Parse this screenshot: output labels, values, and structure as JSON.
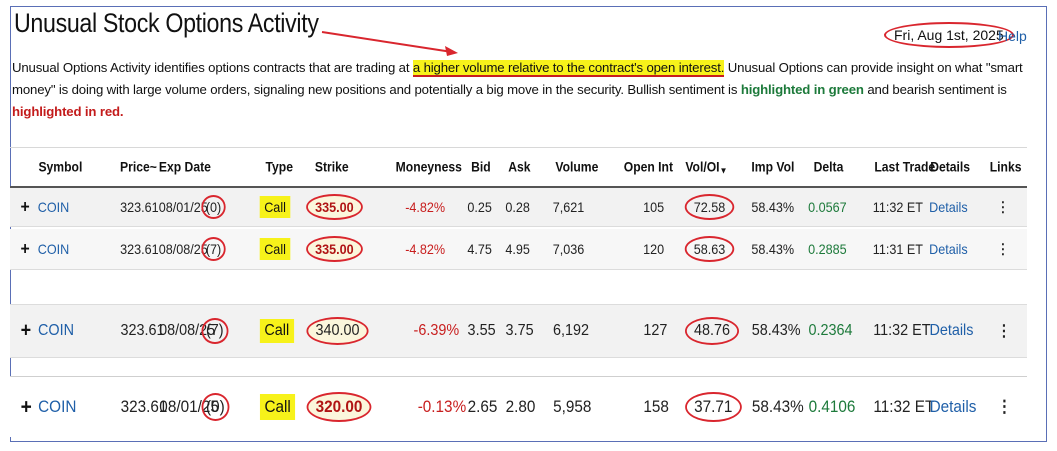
{
  "header": {
    "title": "Unusual Stock Options Activity",
    "date": "Fri, Aug 1st, 2025",
    "help": "Help"
  },
  "intro": {
    "part1": "Unusual Options Activity identifies options contracts that are trading at ",
    "highlight": "a higher volume relative to the contract's open interest.",
    "part2": " Unusual Options can provide insight on what \"smart money\" is doing with large volume orders, signaling new positions and potentially a big move in the security. Bullish sentiment is ",
    "green_text": "highlighted in green",
    "part3": " and bearish sentiment is ",
    "red_text": "highlighted in red."
  },
  "columns": {
    "symbol": "Symbol",
    "price": "Price~",
    "exp_date": "Exp Date",
    "type": "Type",
    "strike": "Strike",
    "moneyness": "Moneyness",
    "bid": "Bid",
    "ask": "Ask",
    "volume": "Volume",
    "open_int": "Open Int",
    "vol_oi": "Vol/OI",
    "vol_oi_sort": "▼",
    "imp_vol": "Imp Vol",
    "delta": "Delta",
    "last_trade": "Last Trade",
    "details": "Details",
    "links": "Links"
  },
  "rows": [
    {
      "plus": "+",
      "symbol": "COIN",
      "price": "323.61",
      "exp": "08/01/25",
      "days": "(0)",
      "type": "Call",
      "strike": "335.00",
      "moneyness": "-4.82%",
      "bid": "0.25",
      "ask": "0.28",
      "volume": "7,621",
      "open_int": "105",
      "vol_oi": "72.58",
      "imp_vol": "58.43%",
      "delta": "0.0567",
      "last_trade": "11:32 ET",
      "details": "Details",
      "links": "⋮"
    },
    {
      "plus": "+",
      "symbol": "COIN",
      "price": "323.61",
      "exp": "08/08/25",
      "days": "(7)",
      "type": "Call",
      "strike": "335.00",
      "moneyness": "-4.82%",
      "bid": "4.75",
      "ask": "4.95",
      "volume": "7,036",
      "open_int": "120",
      "vol_oi": "58.63",
      "imp_vol": "58.43%",
      "delta": "0.2885",
      "last_trade": "11:31 ET",
      "details": "Details",
      "links": "⋮"
    },
    {
      "plus": "+",
      "symbol": "COIN",
      "price": "323.61",
      "exp": "08/08/25",
      "days": "(7)",
      "type": "Call",
      "strike": "340.00",
      "moneyness": "-6.39%",
      "bid": "3.55",
      "ask": "3.75",
      "volume": "6,192",
      "open_int": "127",
      "vol_oi": "48.76",
      "imp_vol": "58.43%",
      "delta": "0.2364",
      "last_trade": "11:32 ET",
      "details": "Details",
      "links": "⋮"
    },
    {
      "plus": "+",
      "symbol": "COIN",
      "price": "323.61",
      "exp": "08/01/25",
      "days": "(0)",
      "type": "Call",
      "strike": "320.00",
      "moneyness": "-0.13%",
      "bid": "2.65",
      "ask": "2.80",
      "volume": "5,958",
      "open_int": "158",
      "vol_oi": "37.71",
      "imp_vol": "58.43%",
      "delta": "0.4106",
      "last_trade": "11:32 ET",
      "details": "Details",
      "links": "⋮"
    }
  ],
  "colors": {
    "highlight": "#f7f21a",
    "annotation_red": "#d9262e",
    "link_blue": "#1f5fa8",
    "bullish_green": "#1d7a3b",
    "bearish_red": "#c81e1e"
  }
}
